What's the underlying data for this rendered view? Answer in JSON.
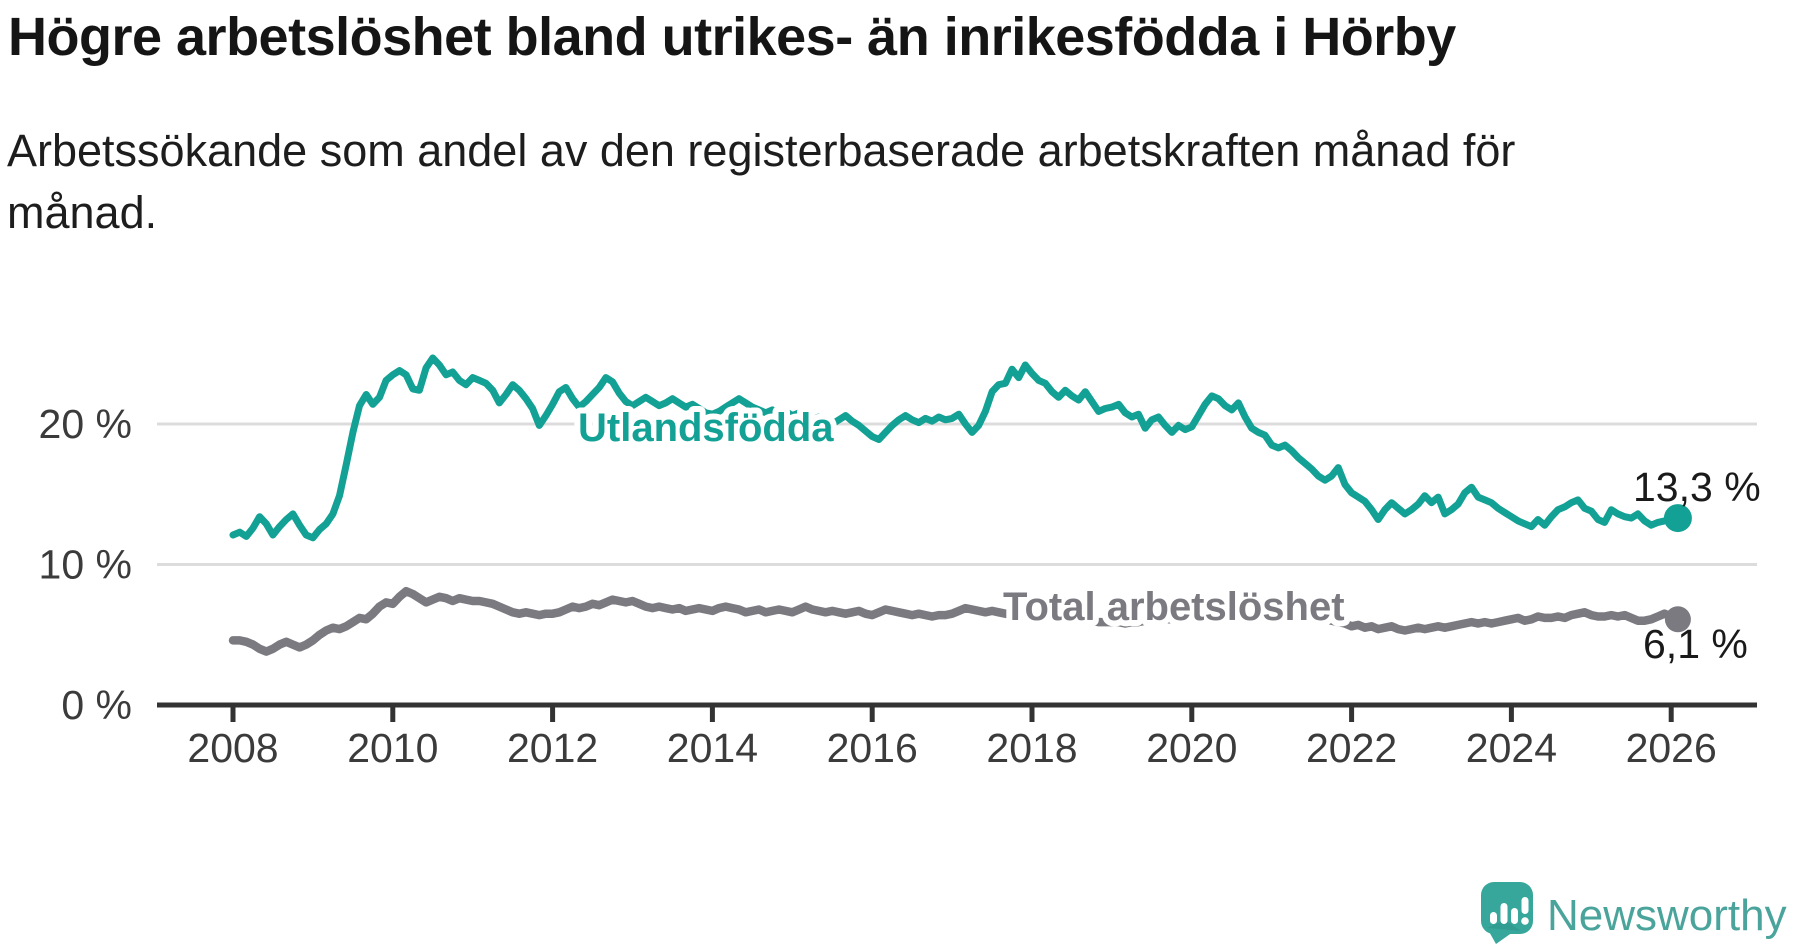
{
  "header": {
    "title": "Högre arbetslöshet bland utrikes- än inrikesfödda i Hörby",
    "subtitle_line1": "Arbetssökande som andel av den registerbaserade arbetskraften månad för",
    "subtitle_line2": "månad."
  },
  "branding": {
    "logo_text": "Newsworthy",
    "logo_text_color": "#4aa49c",
    "logo_icon_color": "#38a79b"
  },
  "colors": {
    "accent_teal": "#12a194",
    "series_gray": "#7a7a80",
    "gridline": "#dcdcdc",
    "axis": "#333333",
    "axis_text": "#3b3b3b"
  },
  "chart_data": {
    "type": "line",
    "title": "Högre arbetslöshet bland utrikes- än inrikesfödda i Hörby",
    "subtitle": "Arbetssökande som andel av den registerbaserade arbetskraften månad för månad.",
    "unit": "%",
    "grid": true,
    "legend_position": "inline-labels",
    "x_axis": {
      "range_years": [
        2007.9,
        2027.1
      ],
      "ticks": [
        {
          "year": 2008,
          "label": "2008"
        },
        {
          "year": 2010,
          "label": "2010"
        },
        {
          "year": 2012,
          "label": "2012"
        },
        {
          "year": 2014,
          "label": "2014"
        },
        {
          "year": 2016,
          "label": "2016"
        },
        {
          "year": 2018,
          "label": "2018"
        },
        {
          "year": 2020,
          "label": "2020"
        },
        {
          "year": 2022,
          "label": "2022"
        },
        {
          "year": 2024,
          "label": "2024"
        },
        {
          "year": 2026,
          "label": "2026"
        }
      ]
    },
    "y_axis": {
      "range": [
        0,
        26
      ],
      "ticks": [
        {
          "value": 0,
          "label": "0 %"
        },
        {
          "value": 10,
          "label": "10 %"
        },
        {
          "value": 20,
          "label": "20 %"
        }
      ]
    },
    "series": [
      {
        "name": "Utlandsfödda",
        "color": "#12a194",
        "line_width": 7,
        "start_year": 2008,
        "interval_months": 1,
        "end_value": 13.3,
        "end_label": "13,3 %",
        "values": [
          12.1,
          12.3,
          12.0,
          12.6,
          13.4,
          12.9,
          12.1,
          12.7,
          13.2,
          13.6,
          12.8,
          12.1,
          11.9,
          12.5,
          12.9,
          13.6,
          14.9,
          17.1,
          19.4,
          21.3,
          22.1,
          21.4,
          21.9,
          23.1,
          23.5,
          23.8,
          23.5,
          22.5,
          22.4,
          24.0,
          24.7,
          24.2,
          23.5,
          23.7,
          23.1,
          22.8,
          23.3,
          23.1,
          22.9,
          22.4,
          21.5,
          22.1,
          22.8,
          22.4,
          21.8,
          21.1,
          19.9,
          20.6,
          21.4,
          22.3,
          22.6,
          21.8,
          21.2,
          21.6,
          22.1,
          22.6,
          23.3,
          23.0,
          22.2,
          21.6,
          21.3,
          21.6,
          21.9,
          21.6,
          21.3,
          21.5,
          21.8,
          21.5,
          21.2,
          21.4,
          21.1,
          20.8,
          20.7,
          20.9,
          21.2,
          21.5,
          21.8,
          21.5,
          21.2,
          21.0,
          20.8,
          21.0,
          20.7,
          20.9,
          20.6,
          20.8,
          20.5,
          20.3,
          20.5,
          20.2,
          20.0,
          20.3,
          20.6,
          20.2,
          19.9,
          19.5,
          19.1,
          18.9,
          19.4,
          19.9,
          20.3,
          20.6,
          20.3,
          20.1,
          20.4,
          20.2,
          20.5,
          20.3,
          20.4,
          20.7,
          20.0,
          19.4,
          19.9,
          20.9,
          22.3,
          22.8,
          22.9,
          23.9,
          23.3,
          24.2,
          23.6,
          23.1,
          22.9,
          22.3,
          21.9,
          22.4,
          22.0,
          21.7,
          22.3,
          21.6,
          20.9,
          21.1,
          21.2,
          21.4,
          20.8,
          20.5,
          20.7,
          19.7,
          20.3,
          20.5,
          19.9,
          19.4,
          19.9,
          19.6,
          19.8,
          20.6,
          21.4,
          22.0,
          21.8,
          21.3,
          21.0,
          21.5,
          20.5,
          19.7,
          19.4,
          19.2,
          18.5,
          18.3,
          18.5,
          18.1,
          17.6,
          17.2,
          16.8,
          16.3,
          16.0,
          16.3,
          16.9,
          15.7,
          15.1,
          14.8,
          14.5,
          13.9,
          13.2,
          13.9,
          14.4,
          14.0,
          13.6,
          13.9,
          14.3,
          14.9,
          14.4,
          14.8,
          13.6,
          13.9,
          14.3,
          15.1,
          15.5,
          14.8,
          14.6,
          14.4,
          14.0,
          13.7,
          13.4,
          13.1,
          12.9,
          12.7,
          13.2,
          12.8,
          13.4,
          13.9,
          14.1,
          14.4,
          14.6,
          14.0,
          13.8,
          13.2,
          13.0,
          13.9,
          13.6,
          13.4,
          13.3,
          13.6,
          13.1,
          12.8,
          13.0,
          13.1,
          13.2,
          13.3
        ]
      },
      {
        "name": "Total arbetslöshet",
        "color": "#7a7a80",
        "line_width": 8.5,
        "start_year": 2008,
        "interval_months": 1,
        "end_value": 6.1,
        "end_label": "6,1 %",
        "values": [
          4.6,
          4.6,
          4.5,
          4.3,
          4.0,
          3.8,
          4.0,
          4.3,
          4.5,
          4.3,
          4.1,
          4.3,
          4.6,
          5.0,
          5.3,
          5.5,
          5.4,
          5.6,
          5.9,
          6.2,
          6.1,
          6.5,
          7.0,
          7.3,
          7.2,
          7.7,
          8.1,
          7.9,
          7.6,
          7.3,
          7.5,
          7.7,
          7.6,
          7.4,
          7.6,
          7.5,
          7.4,
          7.4,
          7.3,
          7.2,
          7.0,
          6.8,
          6.6,
          6.5,
          6.6,
          6.5,
          6.4,
          6.5,
          6.5,
          6.6,
          6.8,
          7.0,
          6.9,
          7.0,
          7.2,
          7.1,
          7.3,
          7.5,
          7.4,
          7.3,
          7.4,
          7.2,
          7.0,
          6.9,
          7.0,
          6.9,
          6.8,
          6.9,
          6.7,
          6.8,
          6.9,
          6.8,
          6.7,
          6.9,
          7.0,
          6.9,
          6.8,
          6.6,
          6.7,
          6.8,
          6.6,
          6.7,
          6.8,
          6.7,
          6.6,
          6.8,
          7.0,
          6.8,
          6.7,
          6.6,
          6.7,
          6.6,
          6.5,
          6.6,
          6.7,
          6.5,
          6.4,
          6.6,
          6.8,
          6.7,
          6.6,
          6.5,
          6.4,
          6.5,
          6.4,
          6.3,
          6.4,
          6.4,
          6.5,
          6.7,
          6.9,
          6.8,
          6.7,
          6.6,
          6.7,
          6.6,
          6.5,
          6.4,
          6.5,
          6.4,
          6.4,
          6.3,
          6.3,
          6.2,
          6.2,
          6.1,
          6.1,
          6.0,
          6.0,
          6.0,
          5.9,
          5.9,
          5.9,
          5.9,
          5.8,
          5.9,
          5.9,
          6.0,
          6.0,
          6.1,
          6.1,
          6.1,
          6.2,
          6.2,
          6.2,
          6.4,
          6.8,
          7.2,
          7.4,
          7.4,
          7.3,
          7.2,
          7.1,
          7.0,
          7.0,
          6.9,
          7.0,
          6.9,
          6.8,
          6.7,
          6.6,
          6.4,
          6.3,
          6.2,
          6.1,
          6.0,
          5.9,
          5.8,
          5.6,
          5.7,
          5.5,
          5.6,
          5.4,
          5.5,
          5.6,
          5.4,
          5.3,
          5.4,
          5.5,
          5.4,
          5.5,
          5.6,
          5.5,
          5.6,
          5.7,
          5.8,
          5.9,
          5.8,
          5.9,
          5.8,
          5.9,
          6.0,
          6.1,
          6.2,
          6.0,
          6.1,
          6.3,
          6.2,
          6.2,
          6.3,
          6.2,
          6.4,
          6.5,
          6.6,
          6.4,
          6.3,
          6.3,
          6.4,
          6.3,
          6.4,
          6.2,
          6.0,
          6.0,
          6.1,
          6.3,
          6.5,
          6.3,
          6.1
        ]
      }
    ]
  }
}
